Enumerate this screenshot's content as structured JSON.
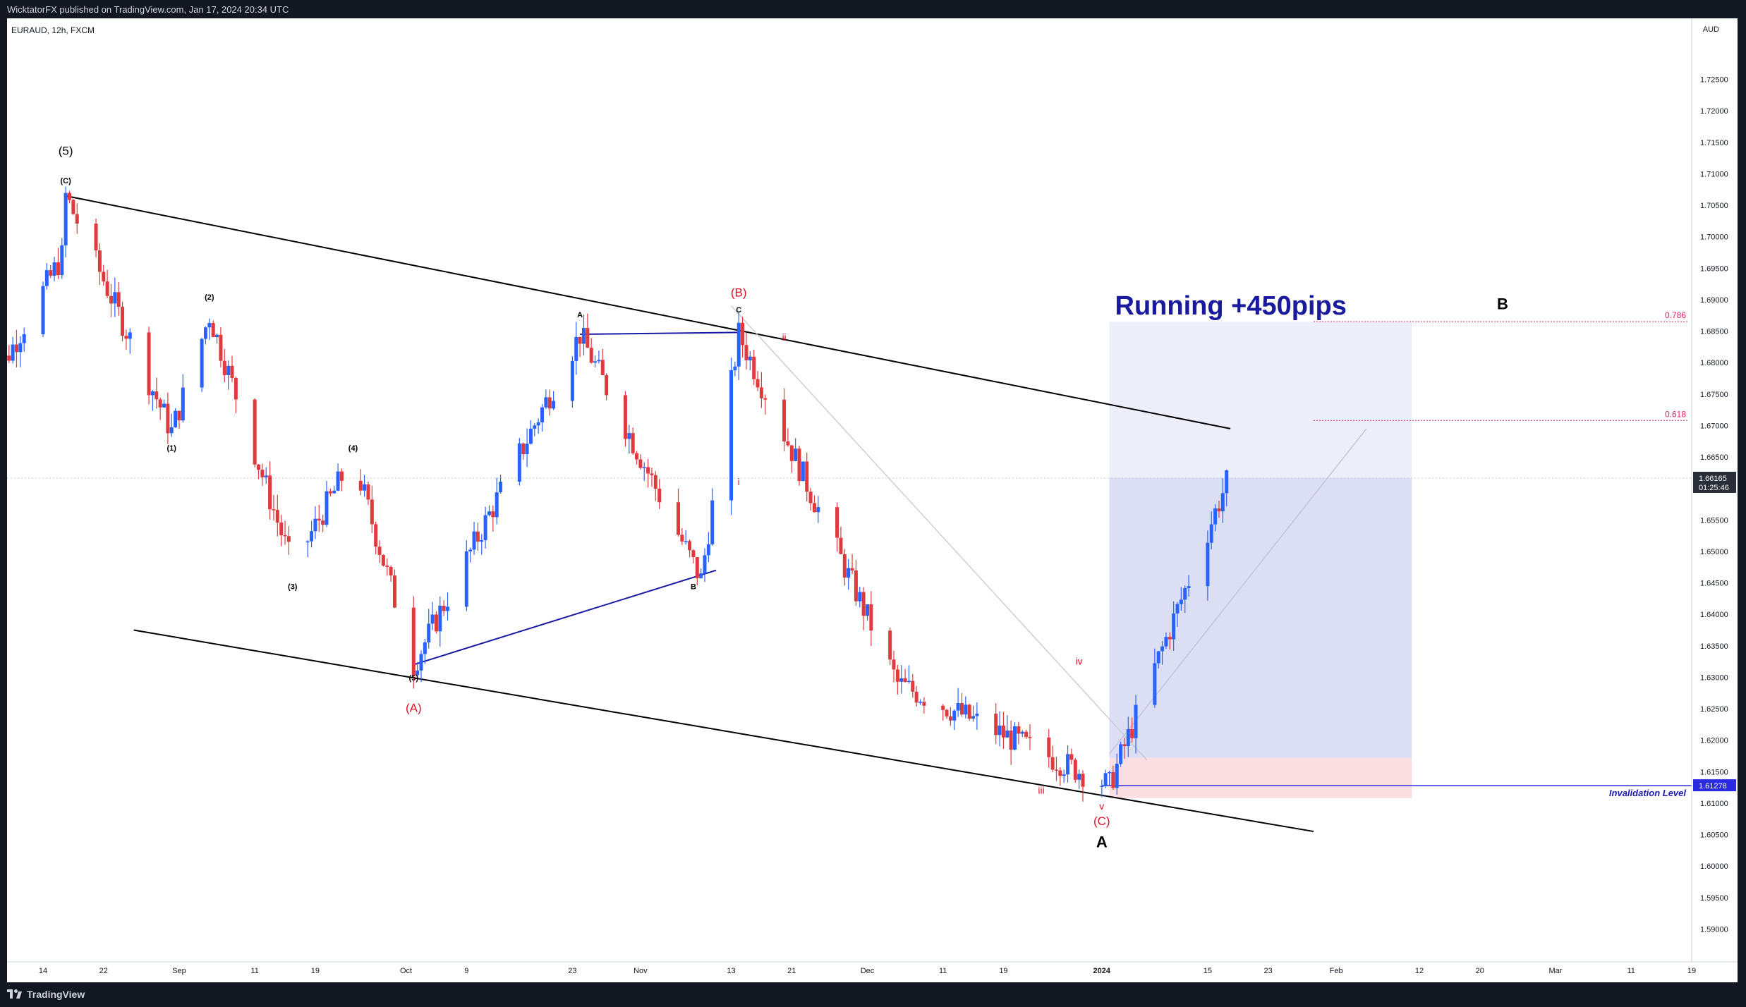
{
  "header": {
    "publisher": "WicktatorFX published on TradingView.com, Jan 17, 2024 20:34 UTC"
  },
  "footer": {
    "brand": "TradingView"
  },
  "chart_data": {
    "type": "candlestick",
    "symbol": "EURAUD, 12h, FXCM",
    "price_axis_unit": "AUD",
    "ylim": [
      1.585,
      1.73
    ],
    "y_ticks": [
      "1.72500",
      "1.72000",
      "1.71500",
      "1.71000",
      "1.70500",
      "1.70000",
      "1.69500",
      "1.69000",
      "1.68500",
      "1.68000",
      "1.67500",
      "1.67000",
      "1.66500",
      "1.66000",
      "1.65500",
      "1.65000",
      "1.64500",
      "1.64000",
      "1.63500",
      "1.63000",
      "1.62500",
      "1.62000",
      "1.61500",
      "1.61000",
      "1.60500",
      "1.60000",
      "1.59500",
      "1.59000"
    ],
    "x_ticks": [
      "14",
      "22",
      "Sep",
      "11",
      "19",
      "Oct",
      "9",
      "23",
      "Nov",
      "13",
      "21",
      "Dec",
      "11",
      "19",
      "2024",
      "15",
      "23",
      "Feb",
      "12",
      "20",
      "Mar",
      "11",
      "19"
    ],
    "colors": {
      "up": "#2962ff",
      "down": "#e03a3e",
      "trendline": "#000000",
      "blue_line": "#1a1aa6",
      "red_label": "#e0102a",
      "fib": "#e91e63",
      "zone_target": "#7b7fd6",
      "zone_stop": "#f9dfe2",
      "title_blue": "#1a1a9e"
    },
    "grid": false,
    "wave_swing_path": [
      [
        "Aug 17",
        1.7065
      ],
      [
        "Aug 31",
        1.669
      ],
      [
        "Sep 5",
        1.6875
      ],
      [
        "Sep 16",
        1.6475
      ],
      [
        "Sep 24",
        1.665
      ],
      [
        "Oct 2",
        1.632
      ],
      [
        "Oct 24",
        1.6845
      ],
      [
        "Nov 9",
        1.6455
      ],
      [
        "Nov 14",
        1.6845
      ],
      [
        "Dec 5",
        1.629
      ],
      [
        "Jan 2",
        1.6128
      ],
      [
        "Jan 18",
        1.6625
      ]
    ],
    "current_price": {
      "value": "1.66165",
      "countdown": "01:25:46"
    },
    "invalidation": {
      "value": "1.61278",
      "label": "Invalidation Level"
    },
    "fib_levels": [
      {
        "label": "0.786",
        "price": 1.6865
      },
      {
        "label": "0.618",
        "price": 1.6708
      }
    ],
    "title_annotation": "Running +450pips",
    "wave_labels": [
      {
        "text": "(5)",
        "date": "Aug 17",
        "price": 1.713,
        "style": "big"
      },
      {
        "text": "(C)",
        "date": "Aug 17",
        "price": 1.7085,
        "style": "small"
      },
      {
        "text": "(2)",
        "date": "Sep 5",
        "price": 1.69,
        "style": "small"
      },
      {
        "text": "(1)",
        "date": "Aug 31",
        "price": 1.666,
        "style": "small"
      },
      {
        "text": "(4)",
        "date": "Sep 24",
        "price": 1.666,
        "style": "small"
      },
      {
        "text": "(3)",
        "date": "Sep 16",
        "price": 1.644,
        "style": "small"
      },
      {
        "text": "(5)",
        "date": "Oct 2",
        "price": 1.6295,
        "style": "small"
      },
      {
        "text": "(A)",
        "date": "Oct 2",
        "price": 1.6245,
        "style": "red"
      },
      {
        "text": "A",
        "date": "Oct 24",
        "price": 1.6872,
        "style": "small"
      },
      {
        "text": "B",
        "date": "Nov 8",
        "price": 1.644,
        "style": "small"
      },
      {
        "text": "C",
        "date": "Nov 14",
        "price": 1.688,
        "style": "small"
      },
      {
        "text": "(B)",
        "date": "Nov 14",
        "price": 1.6905,
        "style": "red"
      },
      {
        "text": "ii",
        "date": "Nov 20",
        "price": 1.6835,
        "style": "redsm"
      },
      {
        "text": "i",
        "date": "Nov 14",
        "price": 1.6605,
        "style": "redsm"
      },
      {
        "text": "iv",
        "date": "Dec 29",
        "price": 1.632,
        "style": "redsm"
      },
      {
        "text": "iii",
        "date": "Dec 24",
        "price": 1.6115,
        "style": "redsm"
      },
      {
        "text": "v",
        "date": "Jan 1",
        "price": 1.609,
        "style": "redsm"
      },
      {
        "text": "(C)",
        "date": "Jan 1",
        "price": 1.6065,
        "style": "red"
      },
      {
        "text": "A",
        "date": "Jan 1",
        "price": 1.603,
        "style": "bigbold"
      },
      {
        "text": "B",
        "date": "Feb 23",
        "price": 1.6885,
        "style": "bigbold"
      }
    ]
  }
}
